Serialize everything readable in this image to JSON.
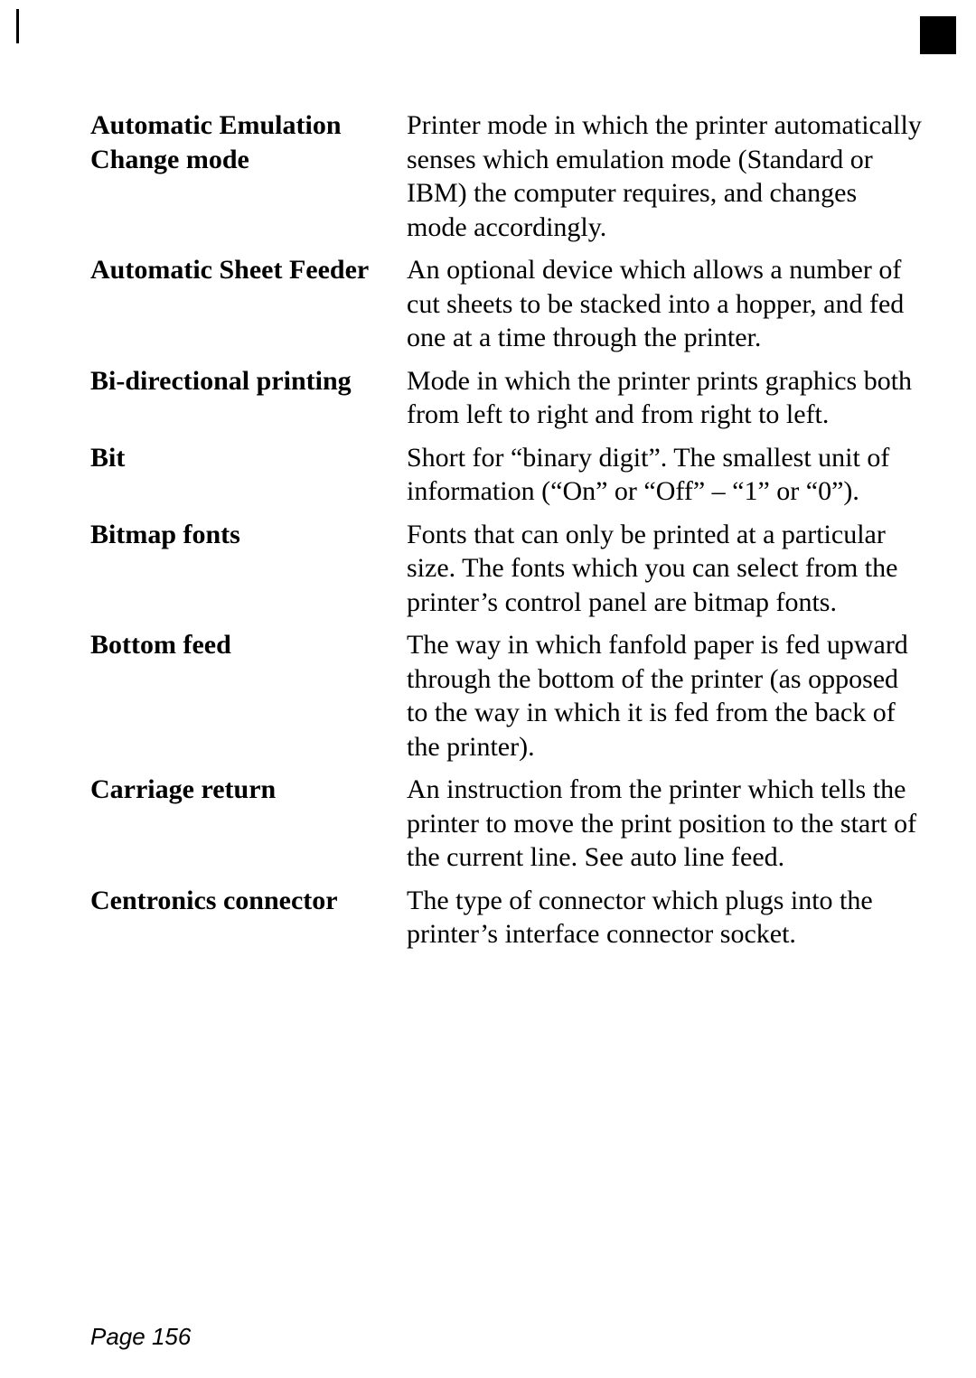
{
  "entries": [
    {
      "term": "Automatic Emula­tion Change mode",
      "definition": "Printer mode in which the printer automatically senses which emulation mode (Stan­dard or IBM) the computer requires, and changes mode accordingly."
    },
    {
      "term": "Automatic Sheet Feeder",
      "definition": "An optional device which allows a number of cut sheets to be stacked into a hopper, and fed one at a time through the printer."
    },
    {
      "term": "Bi-directional printing",
      "definition": "Mode in which the printer prints graphics both from left to right and from right to left."
    },
    {
      "term": "Bit",
      "definition": "Short for “binary digit”. The smallest unit of information (“On” or “Off” – “1” or “0”)."
    },
    {
      "term": "Bitmap fonts",
      "definition": "Fonts that can only be printed at a particular size. The fonts which you can select from the printer’s control panel are bit­map fonts."
    },
    {
      "term": "Bottom feed",
      "definition": "The way in which fanfold paper is fed upward through the bot­tom of the printer (as opposed to the way in which it is fed from the back of the printer)."
    },
    {
      "term": "Carriage return",
      "definition": "An instruction from the printer which tells the printer to move the print position to the start of the current line. See auto line feed."
    },
    {
      "term": "Centronics connector",
      "definition": "The type of connector which plugs into the printer’s interface connector socket."
    }
  ],
  "pageNumber": "Page 156"
}
